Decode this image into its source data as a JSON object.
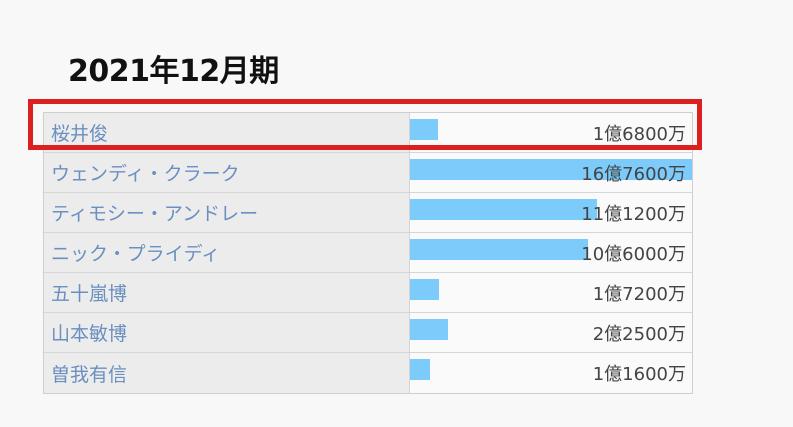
{
  "title": "2021年12月期",
  "colors": {
    "bar": "#7ccbfa",
    "link": "#6a8fc0",
    "highlight": "#dc1f1f"
  },
  "rows": [
    {
      "name": "桜井俊",
      "amount": "1億6800万",
      "value": 16800
    },
    {
      "name": "ウェンディ・クラーク",
      "amount": "16億7600万",
      "value": 167600
    },
    {
      "name": "ティモシー・アンドレー",
      "amount": "11億1200万",
      "value": 111200
    },
    {
      "name": "ニック・プライディ",
      "amount": "10億6000万",
      "value": 106000
    },
    {
      "name": "五十嵐博",
      "amount": "1億7200万",
      "value": 17200
    },
    {
      "name": "山本敏博",
      "amount": "2億2500万",
      "value": 22500
    },
    {
      "name": "曽我有信",
      "amount": "1億1600万",
      "value": 11600
    }
  ],
  "highlighted_row": 0
}
